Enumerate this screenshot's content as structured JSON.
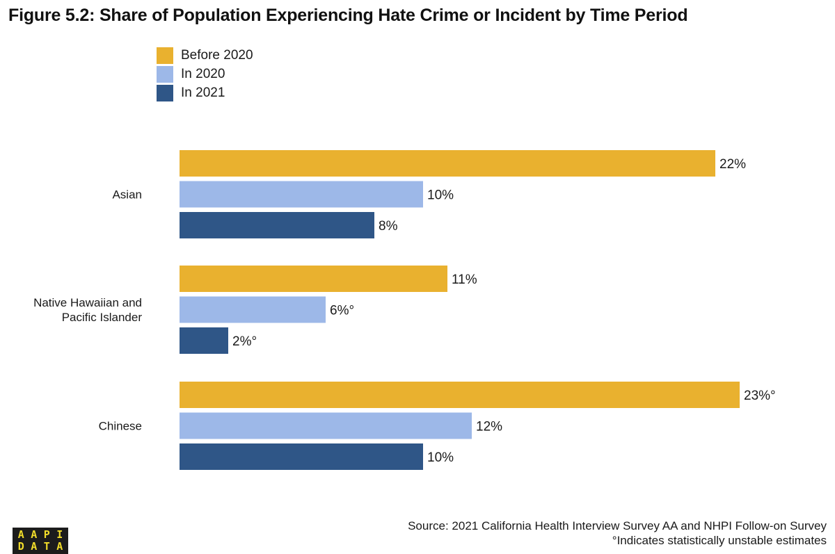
{
  "title": "Figure 5.2: Share of Population Experiencing Hate Crime or Incident by Time Period",
  "colors": {
    "before_2020": "#e9b12f",
    "in_2020": "#9db8e8",
    "in_2021": "#2f5687"
  },
  "chart_data": {
    "type": "bar",
    "orientation": "horizontal",
    "title": "Figure 5.2: Share of Population Experiencing Hate Crime or Incident by Time Period",
    "categories": [
      "Asian",
      "Native Hawaiian and Pacific Islander",
      "Chinese"
    ],
    "category_lines": [
      [
        "Asian"
      ],
      [
        "Native Hawaiian and",
        "Pacific Islander"
      ],
      [
        "Chinese"
      ]
    ],
    "series": [
      {
        "name": "Before 2020",
        "color": "#e9b12f",
        "values": [
          22,
          11,
          23
        ],
        "labels": [
          "22%",
          "11%",
          "23%°"
        ]
      },
      {
        "name": "In 2020",
        "color": "#9db8e8",
        "values": [
          10,
          6,
          12
        ],
        "labels": [
          "10%",
          "6%°",
          "12%"
        ]
      },
      {
        "name": "In 2021",
        "color": "#2f5687",
        "values": [
          8,
          2,
          10
        ],
        "labels": [
          "8%",
          "2%°",
          "10%"
        ]
      }
    ],
    "unit": "%",
    "xlim": [
      0,
      23
    ],
    "grid": false,
    "legend_position": "top-left"
  },
  "source": {
    "line1": "Source: 2021 California Health Interview Survey AA and NHPI Follow-on Survey",
    "line2": "°Indicates statistically unstable estimates"
  },
  "logo": {
    "letters": [
      "A",
      "A",
      "P",
      "I",
      "D",
      "A",
      "T",
      "A"
    ]
  }
}
